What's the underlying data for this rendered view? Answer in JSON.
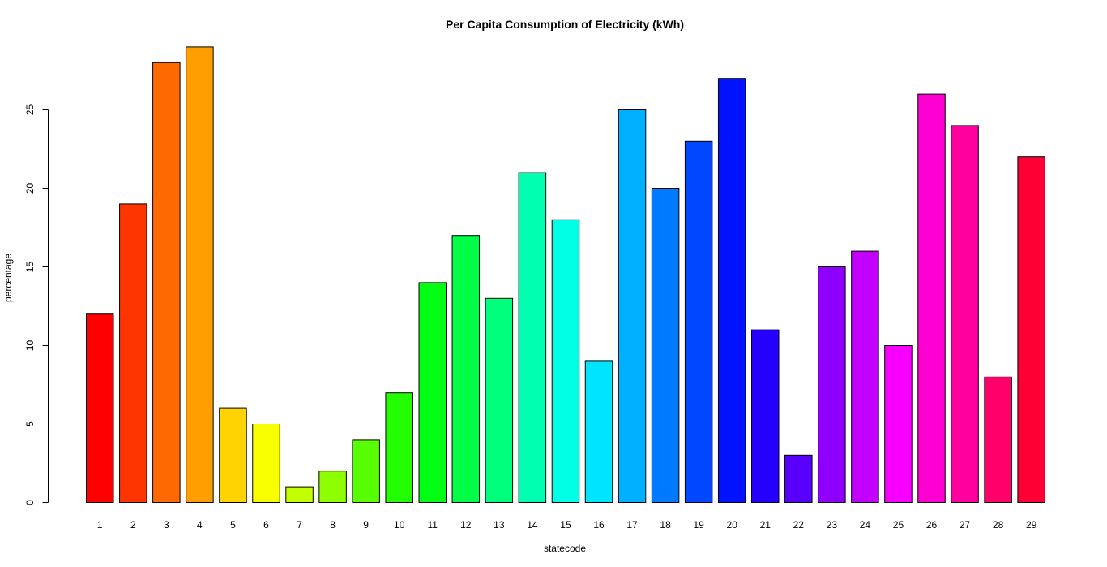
{
  "chart_data": {
    "type": "bar",
    "title": "Per Capita Consumption of Electricity (kWh)",
    "xlabel": "statecode",
    "ylabel": "percentage",
    "categories": [
      "1",
      "2",
      "3",
      "4",
      "5",
      "6",
      "7",
      "8",
      "9",
      "10",
      "11",
      "12",
      "13",
      "14",
      "15",
      "16",
      "17",
      "18",
      "19",
      "20",
      "21",
      "22",
      "23",
      "24",
      "25",
      "26",
      "27",
      "28",
      "29"
    ],
    "values": [
      12,
      19,
      28,
      29,
      6,
      5,
      1,
      2,
      4,
      7,
      14,
      17,
      13,
      21,
      18,
      9,
      25,
      20,
      23,
      27,
      11,
      3,
      15,
      16,
      10,
      26,
      24,
      8,
      22
    ],
    "colors": [
      "#FF0000",
      "#FF3500",
      "#FF6A00",
      "#FF9E00",
      "#FFD300",
      "#F7FF00",
      "#C2FF00",
      "#8DFF00",
      "#58FF00",
      "#23FF00",
      "#00FF12",
      "#00FF47",
      "#00FF7B",
      "#00FFB0",
      "#00FFE5",
      "#00E5FF",
      "#00B0FF",
      "#007BFF",
      "#0047FF",
      "#0012FF",
      "#2300FF",
      "#5800FF",
      "#8D00FF",
      "#C200FF",
      "#F700FF",
      "#FF00D3",
      "#FF009E",
      "#FF006A",
      "#FF0035"
    ],
    "yticks": [
      0,
      5,
      10,
      15,
      20,
      25
    ],
    "ylim": [
      0,
      29
    ],
    "grid": false,
    "legend": "none"
  }
}
